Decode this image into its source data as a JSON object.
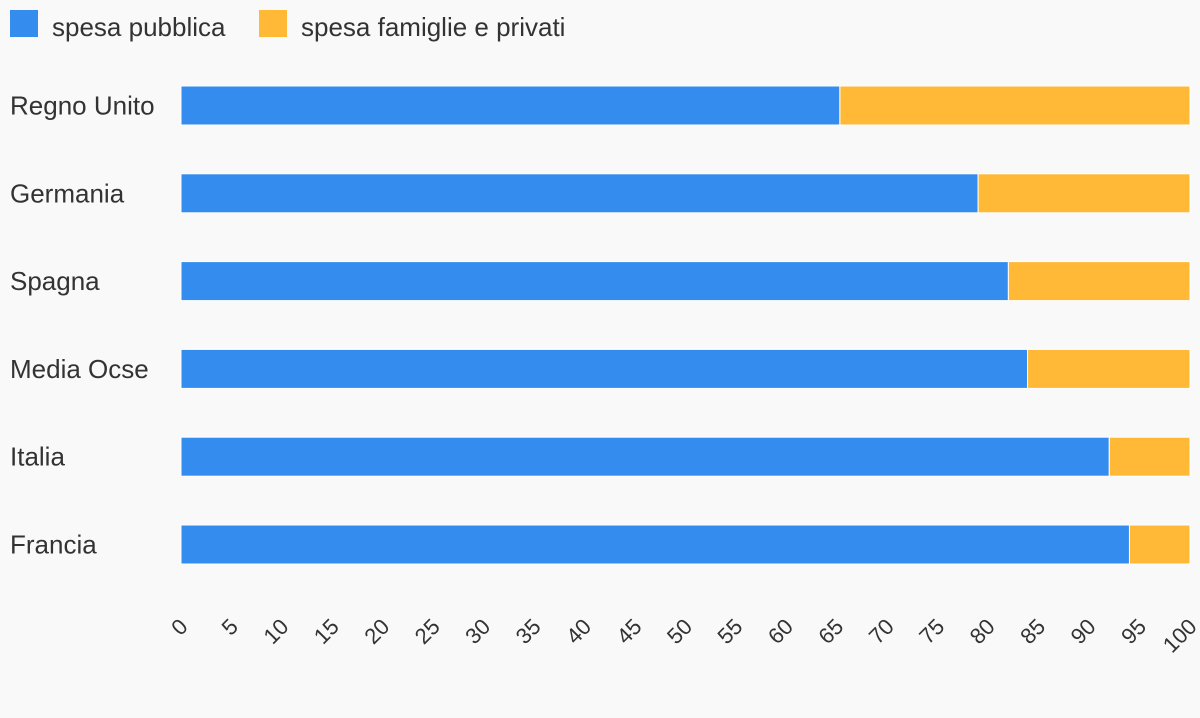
{
  "chart_data": {
    "type": "bar",
    "orientation": "horizontal",
    "stacked": true,
    "title": "",
    "xlabel": "",
    "ylabel": "",
    "categories": [
      "Regno Unito",
      "Germania",
      "Spagna",
      "Media Ocse",
      "Italia",
      "Francia"
    ],
    "series": [
      {
        "name": "spesa pubblica",
        "color": "#338cee",
        "values": [
          65.3,
          79,
          82,
          83.9,
          92,
          94
        ]
      },
      {
        "name": "spesa famiglie e privati",
        "color": "#ffb937",
        "values": [
          34.7,
          21,
          18,
          16.1,
          8,
          6
        ]
      }
    ],
    "xlim": [
      0,
      100
    ],
    "xticks": [
      "0",
      "5",
      "10",
      "15",
      "20",
      "25",
      "30",
      "35",
      "40",
      "45",
      "50",
      "55",
      "60",
      "65",
      "70",
      "75",
      "80",
      "85",
      "90",
      "95",
      "100"
    ],
    "grid": false,
    "legend_position": "top-left"
  }
}
